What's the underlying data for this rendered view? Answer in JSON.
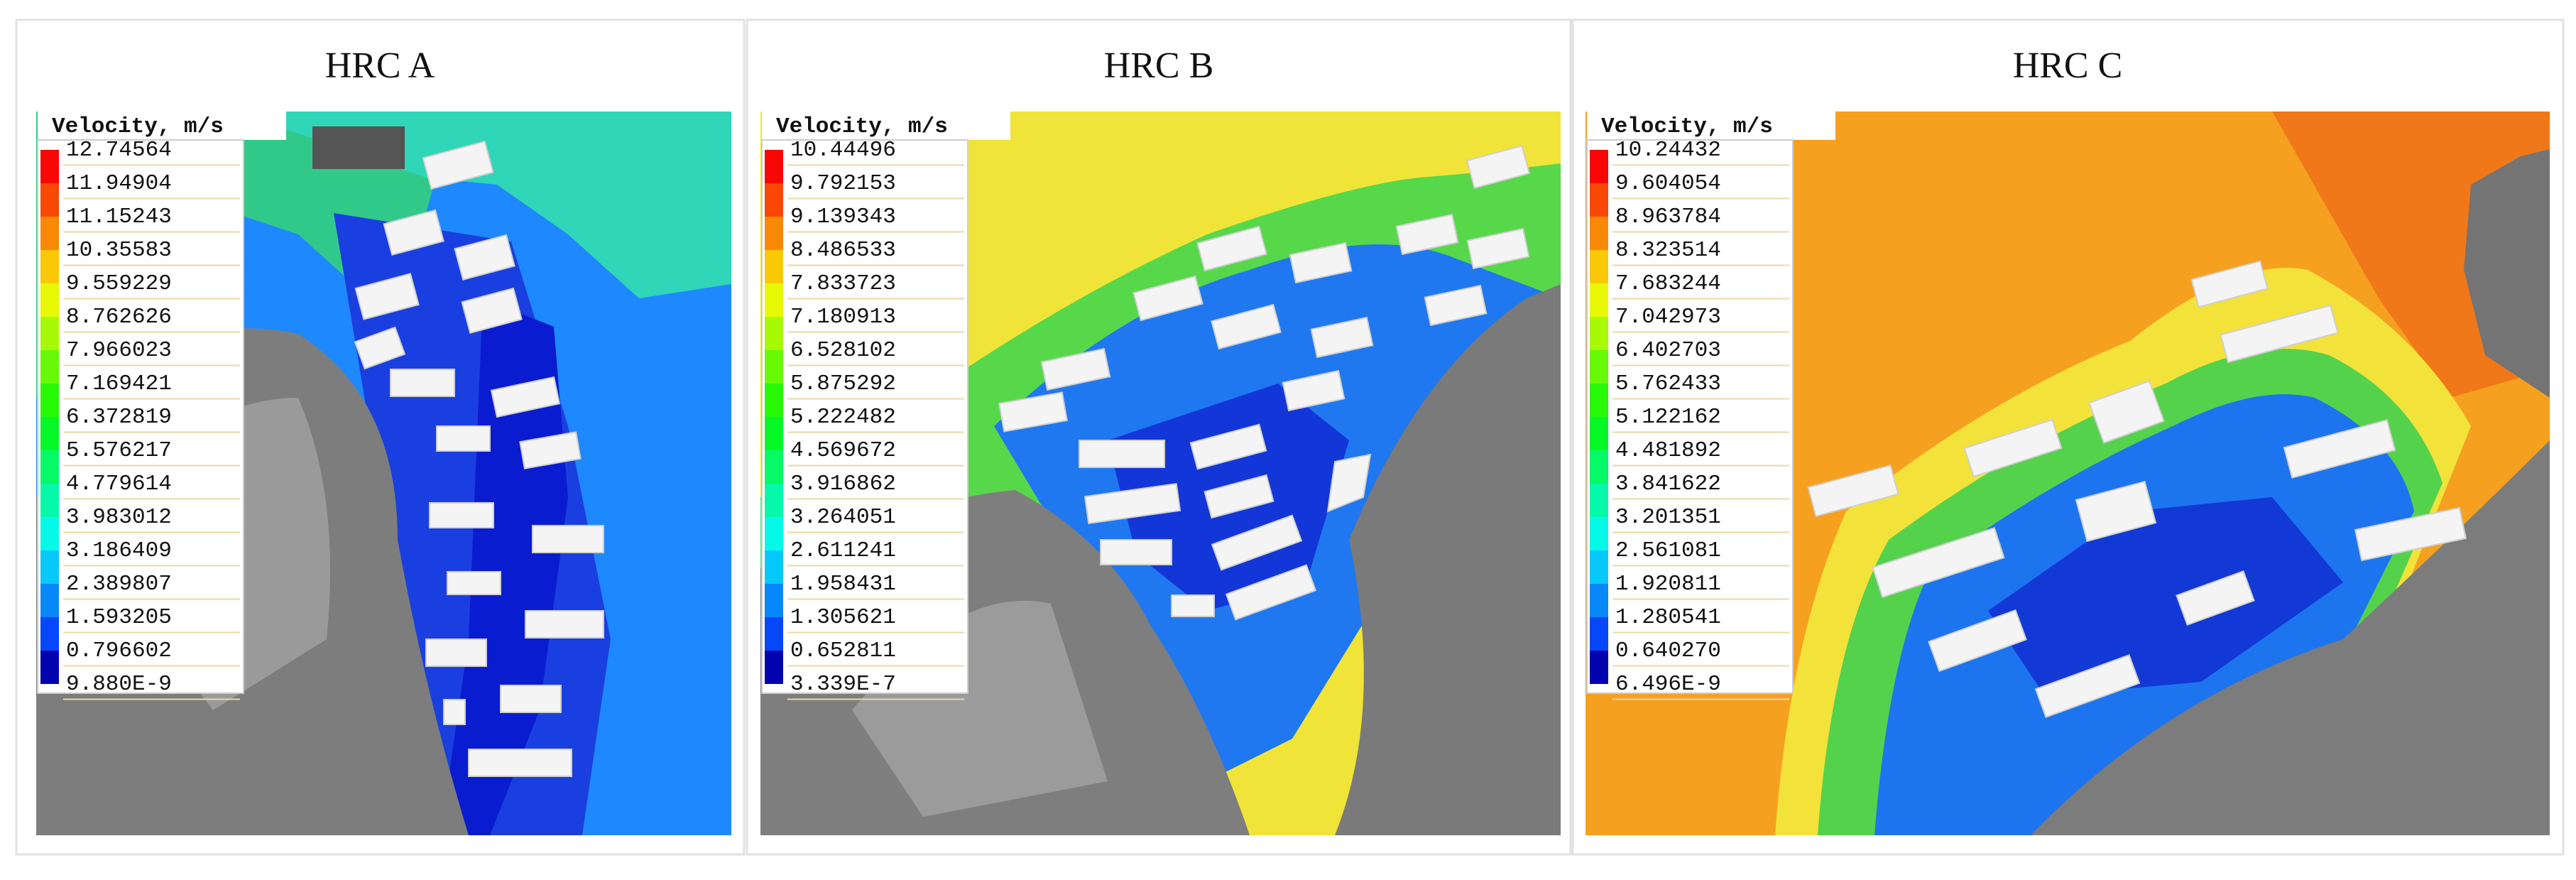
{
  "panels": [
    {
      "title": "HRC A",
      "legend": {
        "title": "Velocity, m/s",
        "labels": [
          "12.74564",
          "11.94904",
          "11.15243",
          "10.35583",
          "9.559229",
          "8.762626",
          "7.966023",
          "7.169421",
          "6.372819",
          "5.576217",
          "4.779614",
          "3.983012",
          "3.186409",
          "2.389807",
          "1.593205",
          "0.796602",
          "9.880E-9"
        ]
      }
    },
    {
      "title": "HRC B",
      "legend": {
        "title": "Velocity, m/s",
        "labels": [
          "10.44496",
          "9.792153",
          "9.139343",
          "8.486533",
          "7.833723",
          "7.180913",
          "6.528102",
          "5.875292",
          "5.222482",
          "4.569672",
          "3.916862",
          "3.264051",
          "2.611241",
          "1.958431",
          "1.305621",
          "0.652811",
          "3.339E-7"
        ]
      }
    },
    {
      "title": "HRC C",
      "legend": {
        "title": "Velocity, m/s",
        "labels": [
          "10.24432",
          "9.604054",
          "8.963784",
          "8.323514",
          "7.683244",
          "7.042973",
          "6.402703",
          "5.762433",
          "5.122162",
          "4.481892",
          "3.841622",
          "3.201351",
          "2.561081",
          "1.920811",
          "1.280541",
          "0.640270",
          "6.496E-9"
        ]
      }
    }
  ]
}
